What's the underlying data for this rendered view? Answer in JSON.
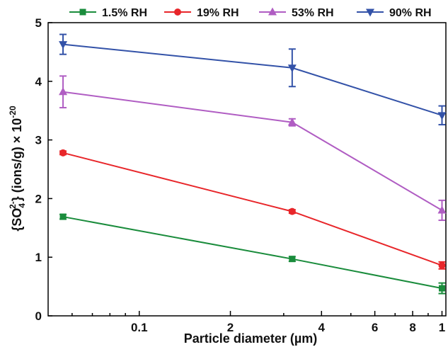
{
  "chart_data": {
    "type": "line",
    "xscale": "log",
    "xlim": [
      0.05,
      1.03
    ],
    "ylim": [
      0,
      5
    ],
    "xlabel": "Particle diameter (µm)",
    "ylabel_parts": [
      "{SO",
      "4",
      "2-",
      "} (ions/g) × 10",
      "-20"
    ],
    "xticks": [
      {
        "value": 0.1,
        "label": "0.1"
      },
      {
        "value": 0.2,
        "label": "2"
      },
      {
        "value": 0.4,
        "label": "4"
      },
      {
        "value": 0.6,
        "label": "6"
      },
      {
        "value": 0.8,
        "label": "8"
      },
      {
        "value": 1.0,
        "label": "1"
      }
    ],
    "minor_xticks": [
      0.06,
      0.07,
      0.08,
      0.09,
      0.3,
      0.5,
      0.7,
      0.9
    ],
    "yticks": [
      0,
      1,
      2,
      3,
      4,
      5
    ],
    "x": [
      0.056,
      0.32,
      1.0
    ],
    "series": [
      {
        "name": "1.5% RH",
        "color": "#1a8c3c",
        "marker": "square",
        "values": [
          1.69,
          0.97,
          0.47
        ],
        "errors": [
          0.04,
          0.04,
          0.09
        ]
      },
      {
        "name": "19% RH",
        "color": "#e8262a",
        "marker": "circle",
        "values": [
          2.78,
          1.78,
          0.86
        ],
        "errors": [
          0.03,
          0.03,
          0.06
        ]
      },
      {
        "name": "53% RH",
        "color": "#b05dc3",
        "marker": "triangle-up",
        "values": [
          3.82,
          3.3,
          1.8
        ],
        "errors": [
          0.27,
          0.06,
          0.17
        ]
      },
      {
        "name": "90% RH",
        "color": "#3352a8",
        "marker": "triangle-down",
        "values": [
          4.63,
          4.23,
          3.42
        ],
        "errors": [
          0.17,
          0.32,
          0.16
        ]
      }
    ],
    "legend_position": "top"
  }
}
